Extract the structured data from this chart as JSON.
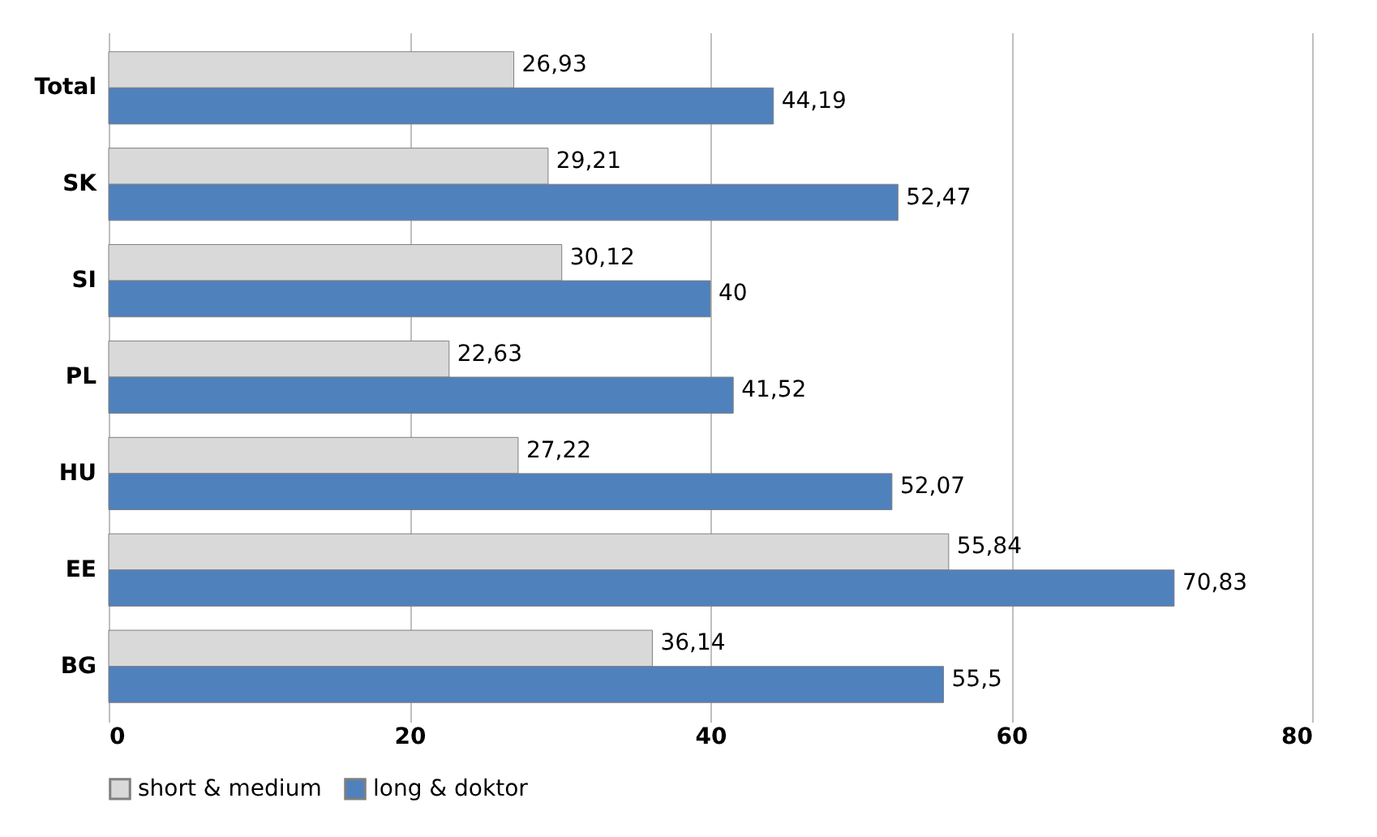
{
  "chart_data": {
    "type": "bar",
    "orientation": "horizontal",
    "categories": [
      "Total",
      "SK",
      "SI",
      "PL",
      "HU",
      "EE",
      "BG"
    ],
    "series": [
      {
        "name": "short & medium",
        "color": "#d9d9d9",
        "values": [
          26.93,
          29.21,
          30.12,
          22.63,
          27.22,
          55.84,
          36.14
        ],
        "value_labels": [
          "26,93",
          "29,21",
          "30,12",
          "22,63",
          "27,22",
          "55,84",
          "36,14"
        ]
      },
      {
        "name": "long & doktor",
        "color": "#4f81bd",
        "values": [
          44.19,
          52.47,
          40,
          41.52,
          52.07,
          70.83,
          55.5
        ],
        "value_labels": [
          "44,19",
          "52,47",
          "40",
          "41,52",
          "52,07",
          "70,83",
          "55,5"
        ]
      }
    ],
    "xlim": [
      0,
      80
    ],
    "xticks": [
      0,
      20,
      40,
      60,
      80
    ],
    "grid": "x",
    "legend": "bottom"
  }
}
